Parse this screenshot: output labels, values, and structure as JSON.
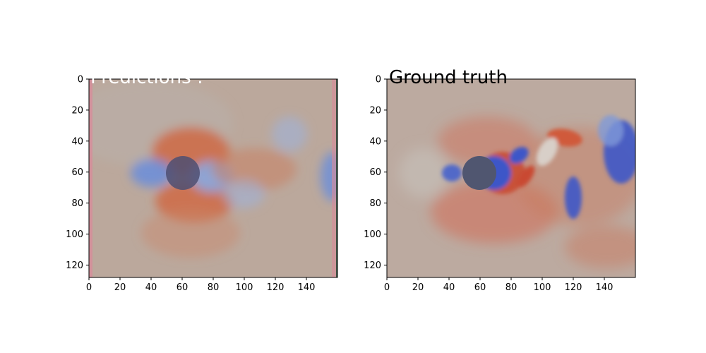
{
  "chart_data": [
    {
      "type": "heatmap",
      "title": "Predictions :",
      "xlim": [
        0,
        160
      ],
      "ylim": [
        128,
        0
      ],
      "xticks": [
        0,
        20,
        40,
        60,
        80,
        100,
        120,
        140
      ],
      "yticks": [
        0,
        20,
        40,
        60,
        80,
        100,
        120
      ],
      "grid": false,
      "colormap": [
        "#3b4cc0",
        "#b9b0a6",
        "#d24b2c"
      ],
      "obstacle": {
        "shape": "circle",
        "center": [
          60,
          60
        ],
        "radius": 11
      },
      "description_values": {
        "background_level": 0.1,
        "wake_pattern": "blurred"
      }
    },
    {
      "type": "heatmap",
      "title": "Ground truth",
      "xlim": [
        0,
        160
      ],
      "ylim": [
        128,
        0
      ],
      "xticks": [
        0,
        20,
        40,
        60,
        80,
        100,
        120,
        140
      ],
      "yticks": [
        0,
        20,
        40,
        60,
        80,
        100,
        120
      ],
      "grid": false,
      "colormap": [
        "#3b4cc0",
        "#b9b0a6",
        "#d24b2c"
      ],
      "obstacle": {
        "shape": "circle",
        "center": [
          60,
          60
        ],
        "radius": 11
      },
      "description_values": {
        "background_level": 0.2,
        "wake_pattern": "sharp vortex street"
      }
    }
  ]
}
